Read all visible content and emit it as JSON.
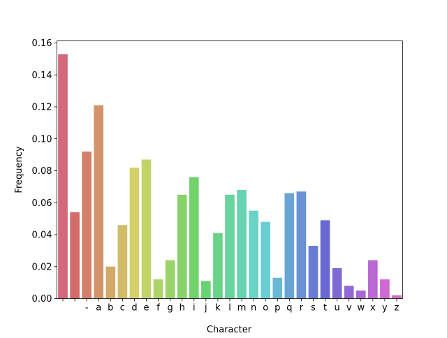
{
  "chart_data": {
    "type": "bar",
    "title": "",
    "xlabel": "Character",
    "ylabel": "Frequency",
    "ylim": [
      0,
      0.16
    ],
    "yticks": [
      "0.00",
      "0.02",
      "0.04",
      "0.06",
      "0.08",
      "0.10",
      "0.12",
      "0.14",
      "0.16"
    ],
    "grid": false,
    "categories": [
      "\n",
      " ",
      "-",
      "a",
      "b",
      "c",
      "d",
      "e",
      "f",
      "g",
      "h",
      "i",
      "j",
      "k",
      "l",
      "m",
      "n",
      "o",
      "p",
      "q",
      "r",
      "s",
      "t",
      "u",
      "v",
      "w",
      "x",
      "y",
      "z"
    ],
    "values": [
      0.153,
      0.054,
      0.092,
      0.121,
      0.02,
      0.046,
      0.082,
      0.087,
      0.012,
      0.024,
      0.065,
      0.076,
      0.011,
      0.041,
      0.065,
      0.068,
      0.055,
      0.048,
      0.013,
      0.066,
      0.067,
      0.033,
      0.049,
      0.019,
      0.008,
      0.005,
      0.024,
      0.012,
      0.002
    ]
  }
}
